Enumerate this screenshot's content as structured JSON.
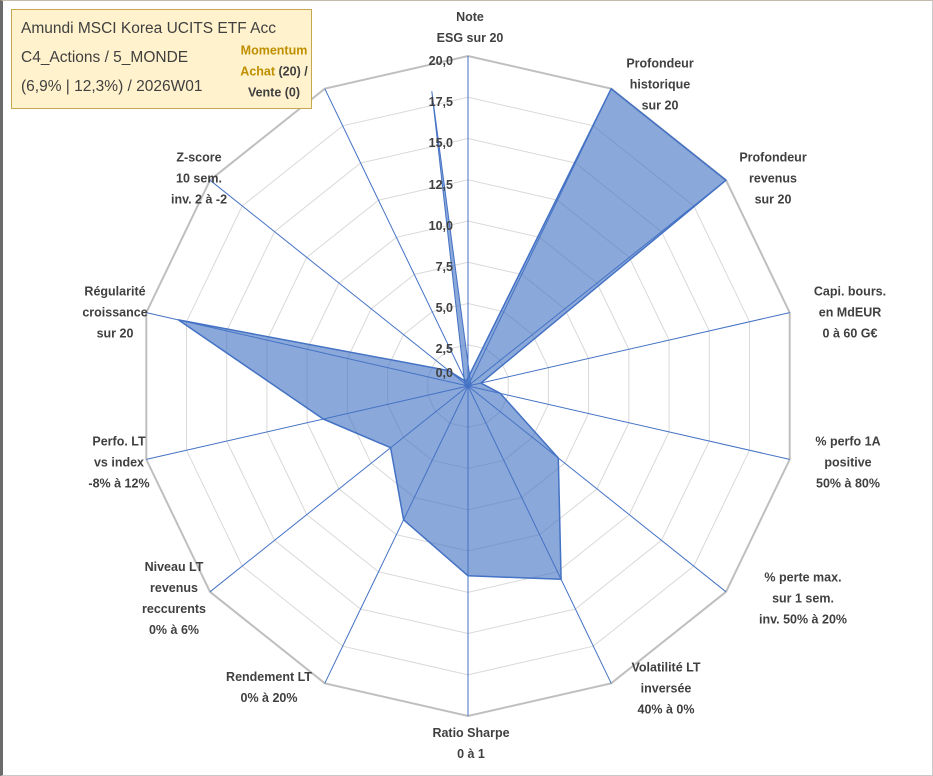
{
  "window": {
    "border_color": "#c3baa9"
  },
  "title_box": {
    "bg": "#FFF2CC",
    "border_color": "#C5A84F",
    "text_color": "#404040",
    "lines": [
      "Amundi MSCI Korea UCITS ETF Acc",
      "C4_Actions / 5_MONDE",
      "(6,9% | 12,3%) / 2026W01"
    ]
  },
  "momentum_label": {
    "line1": "Momentum",
    "line2_accent": "Achat",
    "line2_rest": " (20) /",
    "line3": "Vente (0)",
    "accent_color": "#BF8F00",
    "text_color": "#404040"
  },
  "chart_data": {
    "type": "radar",
    "title": "",
    "rmin": 0,
    "rmax": 20,
    "ring_step": 2.5,
    "grid": "on",
    "legend": "none",
    "tick_labels": [
      "20,0",
      "17,5",
      "15,0",
      "12,5",
      "10,0",
      "7,5",
      "5,0",
      "2,5",
      "0,0"
    ],
    "axes": [
      {
        "id": "note-esg",
        "label": "Note ESG sur 20",
        "lines": [
          "Note",
          "ESG sur 20"
        ],
        "value": 0.5
      },
      {
        "id": "profondeur-historique",
        "label": "Profondeur historique sur 20",
        "lines": [
          "Profondeur",
          "historique",
          "sur 20"
        ],
        "value": 20
      },
      {
        "id": "profondeur-revenus",
        "label": "Profondeur revenus sur 20",
        "lines": [
          "Profondeur",
          "revenus",
          "sur 20"
        ],
        "value": 20
      },
      {
        "id": "capi-bours",
        "label": "Capi. bours. en MdEUR 0 à 60 G€",
        "lines": [
          "Capi. bours.",
          "en MdEUR",
          "0 à 60 G€"
        ],
        "value": 0.8
      },
      {
        "id": "perfo-1a-positive",
        "label": "% perfo 1A positive 50% à 80%",
        "lines": [
          "% perfo 1A",
          "positive",
          "50% à 80%"
        ],
        "value": 2
      },
      {
        "id": "perte-max",
        "label": "% perte max. sur 1 sem. inv. 50% à 20%",
        "lines": [
          "% perte max.",
          "sur 1 sem.",
          "inv. 50% à 20%"
        ],
        "value": 7
      },
      {
        "id": "volatilite-lt",
        "label": "Volatilité LT inversée 40% à 0%",
        "lines": [
          "Volatilité LT",
          "inversée",
          "40% à 0%"
        ],
        "value": 13
      },
      {
        "id": "ratio-sharpe",
        "label": "Ratio Sharpe 0 à 1",
        "lines": [
          "Ratio Sharpe",
          "0 à 1"
        ],
        "value": 11.5
      },
      {
        "id": "rendement-lt",
        "label": "Rendement LT 0% à 20%",
        "lines": [
          "Rendement LT",
          "0% à 20%"
        ],
        "value": 9
      },
      {
        "id": "niveau-lt-revenus",
        "label": "Niveau LT revenus reccurents 0% à 6%",
        "lines": [
          "Niveau LT",
          "revenus",
          "reccurents",
          "0% à 6%"
        ],
        "value": 6
      },
      {
        "id": "perfo-lt-vs-index",
        "label": "Perfo. LT vs index -8% à 12%",
        "lines": [
          "Perfo. LT",
          "vs index",
          "-8% à 12%"
        ],
        "value": 9
      },
      {
        "id": "regularite-croissance",
        "label": "Régularité croissance sur 20",
        "lines": [
          "Régularité",
          "croissance",
          "sur 20"
        ],
        "value": 18
      },
      {
        "id": "z-score",
        "label": "Z-score 10 sem. inv. 2 à -2",
        "lines": [
          "Z-score",
          "10 sem.",
          "inv. 2 à -2"
        ],
        "value": 1.5
      },
      {
        "id": "momentum",
        "label": "Momentum Achat (20) / Vente (0)",
        "lines": [
          "Momentum",
          "Achat (20) /",
          "Vente (0)"
        ],
        "value": 0.3
      }
    ],
    "spike": {
      "near_axis": "note-esg",
      "value": 18
    },
    "colors": {
      "fill": "#4472C4",
      "fill_opacity": 0.62,
      "stroke": "#4472C4",
      "spoke": "#4472C4",
      "grid": "#D9D9D9",
      "outer_ring": "#BFBFBF",
      "label": "#404040"
    }
  }
}
